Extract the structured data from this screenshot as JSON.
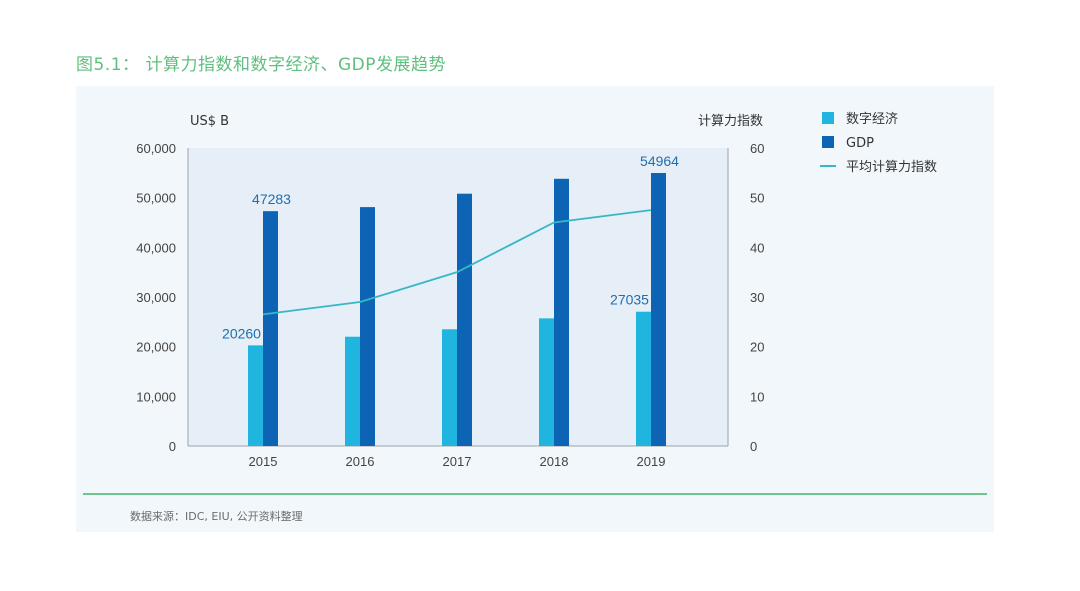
{
  "figure": {
    "title": "图5.1： 计算力指数和数字经济、GDP发展趋势",
    "source": "数据来源：IDC, EIU, 公开资料整理"
  },
  "chart_data": {
    "type": "bar",
    "categories": [
      "2015",
      "2016",
      "2017",
      "2018",
      "2019"
    ],
    "left_axis": {
      "label": "US$ B",
      "range": [
        0,
        60000
      ],
      "ticks": [
        0,
        10000,
        20000,
        30000,
        40000,
        50000,
        60000
      ],
      "tick_labels": [
        "0",
        "10,000",
        "20,000",
        "30,000",
        "40,000",
        "50,000",
        "60,000"
      ]
    },
    "right_axis": {
      "label": "计算力指数",
      "range": [
        0,
        60
      ],
      "ticks": [
        0,
        10,
        20,
        30,
        40,
        50,
        60
      ],
      "tick_labels": [
        "0",
        "10",
        "20",
        "30",
        "40",
        "50",
        "60"
      ]
    },
    "series": [
      {
        "name": "数字经济",
        "kind": "bar",
        "axis": "left",
        "color": "#1fb5de",
        "values": [
          20260,
          22000,
          23500,
          25700,
          27035
        ]
      },
      {
        "name": "GDP",
        "kind": "bar",
        "axis": "left",
        "color": "#0e64b4",
        "values": [
          47283,
          48100,
          50800,
          53800,
          54964
        ]
      },
      {
        "name": "平均计算力指数",
        "kind": "line",
        "axis": "right",
        "color": "#36b8c4",
        "values": [
          26.5,
          29,
          35,
          45,
          47.5
        ]
      }
    ],
    "data_labels": [
      {
        "series": "GDP",
        "index": 0,
        "text": "47283"
      },
      {
        "series": "数字经济",
        "index": 0,
        "text": "20260"
      },
      {
        "series": "数字经济",
        "index": 4,
        "text": "27035"
      },
      {
        "series": "GDP",
        "index": 4,
        "text": "54964"
      }
    ],
    "legend": {
      "position": "right",
      "entries": [
        "数字经济",
        "GDP",
        "平均计算力指数"
      ]
    },
    "grid": false
  }
}
